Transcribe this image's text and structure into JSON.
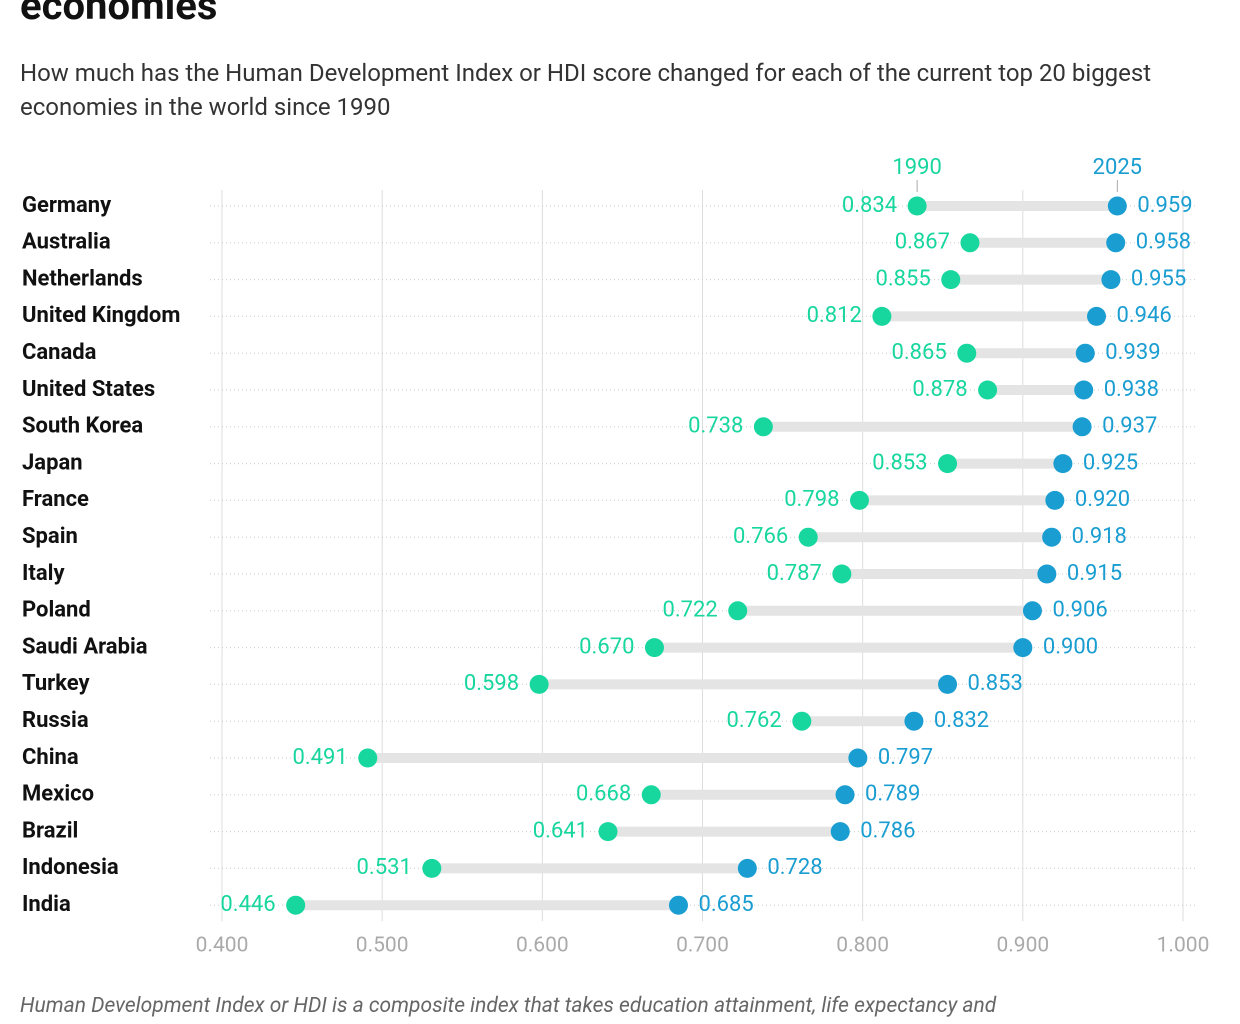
{
  "chart_data": {
    "type": "dumbbell",
    "title": "economies",
    "subtitle": "How much has the Human Development Index or HDI score changed for each of the current top 20 biggest economies in the world since 1990",
    "note": "Human Development Index or HDI is a composite index that takes education attainment, life expectancy and",
    "categories": [
      "Germany",
      "Australia",
      "Netherlands",
      "United Kingdom",
      "Canada",
      "United States",
      "South Korea",
      "Japan",
      "France",
      "Spain",
      "Italy",
      "Poland",
      "Saudi Arabia",
      "Turkey",
      "Russia",
      "China",
      "Mexico",
      "Brazil",
      "Indonesia",
      "India"
    ],
    "series": [
      {
        "name": "1990",
        "color": "#17d69e",
        "values": [
          0.834,
          0.867,
          0.855,
          0.812,
          0.865,
          0.878,
          0.738,
          0.853,
          0.798,
          0.766,
          0.787,
          0.722,
          0.67,
          0.598,
          0.762,
          0.491,
          0.668,
          0.641,
          0.531,
          0.446
        ],
        "value_labels": [
          "0.834",
          "0.867",
          "0.855",
          "0.812",
          "0.865",
          "0.878",
          "0.738",
          "0.853",
          "0.798",
          "0.766",
          "0.787",
          "0.722",
          "0.670",
          "0.598",
          "0.762",
          "0.491",
          "0.668",
          "0.641",
          "0.531",
          "0.446"
        ]
      },
      {
        "name": "2025",
        "color": "#1a9dd1",
        "values": [
          0.959,
          0.958,
          0.955,
          0.946,
          0.939,
          0.938,
          0.937,
          0.925,
          0.92,
          0.918,
          0.915,
          0.906,
          0.9,
          0.853,
          0.832,
          0.797,
          0.789,
          0.786,
          0.728,
          0.685
        ],
        "value_labels": [
          "0.959",
          "0.958",
          "0.955",
          "0.946",
          "0.939",
          "0.938",
          "0.937",
          "0.925",
          "0.920",
          "0.918",
          "0.915",
          "0.906",
          "0.900",
          "0.853",
          "0.832",
          "0.797",
          "0.789",
          "0.786",
          "0.728",
          "0.685"
        ]
      }
    ],
    "xlim": [
      0.4,
      1.0
    ],
    "xticks": [
      {
        "value": 0.4,
        "label": "0.400"
      },
      {
        "value": 0.5,
        "label": "0.500"
      },
      {
        "value": 0.6,
        "label": "0.600"
      },
      {
        "value": 0.7,
        "label": "0.700"
      },
      {
        "value": 0.8,
        "label": "0.800"
      },
      {
        "value": 0.9,
        "label": "0.900"
      },
      {
        "value": 1.0,
        "label": "1.000"
      }
    ],
    "grid": true
  }
}
